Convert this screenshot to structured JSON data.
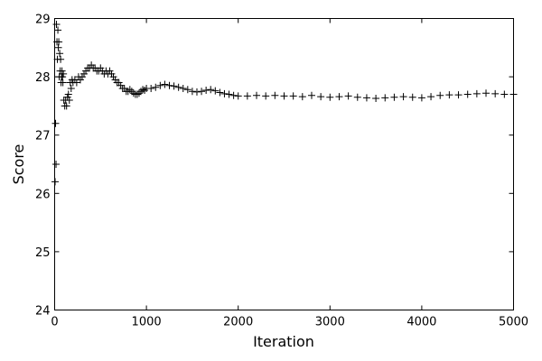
{
  "chart_data": {
    "type": "scatter",
    "title": "",
    "xlabel": "Iteration",
    "ylabel": "Score",
    "xlim": [
      0,
      5000
    ],
    "ylim": [
      24,
      29
    ],
    "xticks": [
      "0",
      "1000",
      "2000",
      "3000",
      "4000",
      "5000"
    ],
    "yticks": [
      "24",
      "25",
      "26",
      "27",
      "28",
      "29"
    ],
    "grid": false,
    "marker": "plus",
    "color": "#000000",
    "series": [
      {
        "x": [
          5,
          10,
          15,
          20,
          25,
          30,
          35,
          40,
          45,
          50,
          55,
          60,
          65,
          70,
          75,
          80,
          85,
          90,
          95,
          100,
          110,
          120,
          130,
          140,
          150,
          160,
          170,
          180,
          190,
          200,
          220,
          240,
          260,
          280,
          300,
          320,
          340,
          360,
          380,
          400,
          420,
          440,
          460,
          480,
          500,
          520,
          540,
          560,
          580,
          600,
          620,
          640,
          660,
          680,
          700,
          720,
          740,
          760,
          780,
          800,
          820,
          840,
          860,
          880,
          900,
          920,
          940,
          960,
          980,
          1000,
          1050,
          1100,
          1150,
          1200,
          1250,
          1300,
          1350,
          1400,
          1450,
          1500,
          1550,
          1600,
          1650,
          1700,
          1750,
          1800,
          1850,
          1900,
          1950,
          2000,
          2100,
          2200,
          2300,
          2400,
          2500,
          2600,
          2700,
          2800,
          2900,
          3000,
          3100,
          3200,
          3300,
          3400,
          3500,
          3600,
          3700,
          3800,
          3900,
          4000,
          4100,
          4200,
          4300,
          4400,
          4500,
          4600,
          4700,
          4800,
          4900,
          5000
        ],
        "y": [
          26.2,
          27.2,
          26.5,
          28.9,
          28.6,
          28.3,
          28.8,
          28.5,
          28.6,
          28.0,
          28.4,
          28.1,
          28.3,
          27.9,
          28.0,
          28.1,
          28.0,
          27.9,
          28.05,
          27.6,
          27.5,
          27.6,
          27.5,
          27.65,
          27.7,
          27.6,
          27.9,
          27.8,
          27.95,
          27.9,
          27.95,
          27.9,
          28.0,
          27.95,
          28.0,
          28.05,
          28.1,
          28.15,
          28.15,
          28.2,
          28.15,
          28.15,
          28.1,
          28.1,
          28.15,
          28.1,
          28.05,
          28.1,
          28.05,
          28.1,
          28.05,
          28.0,
          27.95,
          27.9,
          27.9,
          27.85,
          27.8,
          27.8,
          27.75,
          27.75,
          27.78,
          27.75,
          27.72,
          27.7,
          27.7,
          27.72,
          27.75,
          27.78,
          27.77,
          27.8,
          27.8,
          27.82,
          27.85,
          27.87,
          27.85,
          27.84,
          27.82,
          27.8,
          27.78,
          27.75,
          27.74,
          27.75,
          27.77,
          27.78,
          27.76,
          27.73,
          27.71,
          27.7,
          27.68,
          27.67,
          27.67,
          27.68,
          27.67,
          27.68,
          27.67,
          27.67,
          27.66,
          27.68,
          27.66,
          27.65,
          27.66,
          27.67,
          27.65,
          27.64,
          27.63,
          27.64,
          27.65,
          27.66,
          27.65,
          27.64,
          27.66,
          27.68,
          27.69,
          27.69,
          27.7,
          27.71,
          27.72,
          27.71,
          27.7,
          27.7
        ]
      }
    ]
  }
}
